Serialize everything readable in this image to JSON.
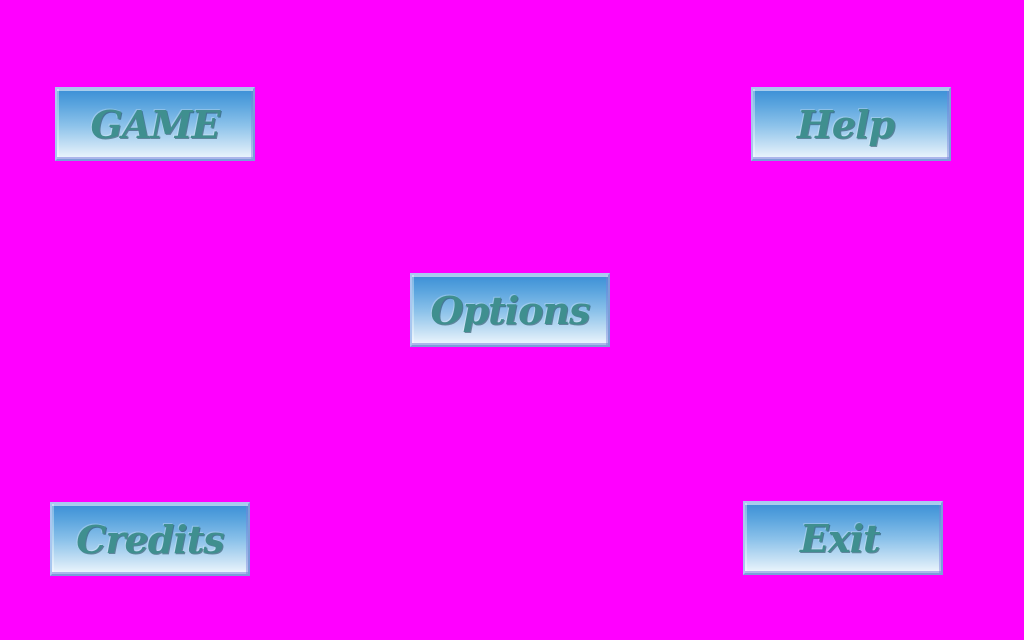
{
  "colors": {
    "background": "#ff00ff",
    "button_top": "#3b8fd6",
    "button_bottom": "#eef7fd",
    "label_text": "#3f8f8f"
  },
  "menu": {
    "game_label": "GAME",
    "help_label": "Help",
    "options_label": "Options",
    "credits_label": "Credits",
    "exit_label": "Exit"
  }
}
